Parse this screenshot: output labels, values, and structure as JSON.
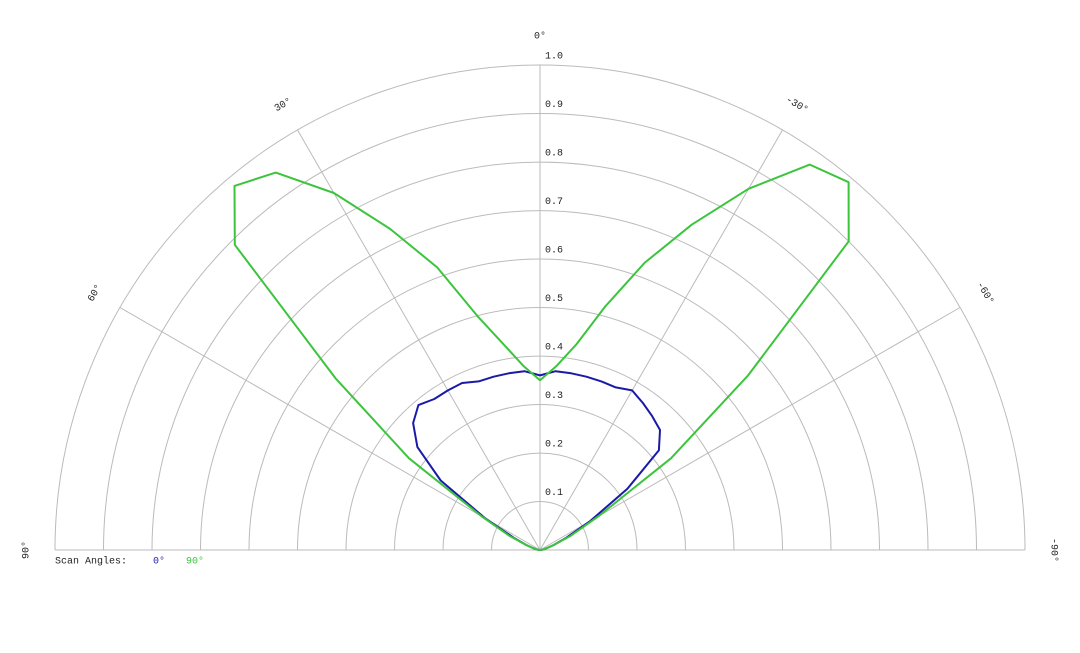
{
  "chart_data": {
    "type": "polar",
    "theta": [
      90,
      85,
      80,
      75,
      70,
      65,
      60,
      55,
      50,
      45,
      40,
      35,
      30,
      25,
      20,
      15,
      10,
      5,
      0,
      -5,
      -10,
      -15,
      -20,
      -25,
      -30,
      -35,
      -40,
      -45,
      -50,
      -55,
      -60,
      -65,
      -70,
      -75,
      -80,
      -85,
      -90
    ],
    "series": [
      {
        "name": "0°",
        "color": "#1a1aa8",
        "values": [
          0,
          0.003,
          0.008,
          0.015,
          0.03,
          0.06,
          0.13,
          0.25,
          0.33,
          0.37,
          0.39,
          0.38,
          0.38,
          0.38,
          0.37,
          0.37,
          0.37,
          0.37,
          0.36,
          0.37,
          0.37,
          0.37,
          0.37,
          0.37,
          0.38,
          0.37,
          0.36,
          0.35,
          0.32,
          0.22,
          0.12,
          0.06,
          0.03,
          0.015,
          0.008,
          0.003,
          0
        ]
      },
      {
        "name": "90°",
        "color": "#3cc43c",
        "values": [
          0,
          0.003,
          0.008,
          0.015,
          0.03,
          0.07,
          0.14,
          0.33,
          0.55,
          0.89,
          0.98,
          0.95,
          0.85,
          0.73,
          0.62,
          0.5,
          0.43,
          0.38,
          0.35,
          0.38,
          0.43,
          0.52,
          0.63,
          0.74,
          0.86,
          0.97,
          0.99,
          0.9,
          0.56,
          0.33,
          0.14,
          0.07,
          0.03,
          0.015,
          0.008,
          0.003,
          0
        ]
      }
    ],
    "rlim": [
      0,
      1
    ],
    "rticks": [
      0.1,
      0.2,
      0.3,
      0.4,
      0.5,
      0.6,
      0.7,
      0.8,
      0.9,
      {
        "value": 1,
        "label": "1.0"
      }
    ],
    "thetaticks": [
      {
        "value": 90,
        "label": "90°"
      },
      {
        "value": 60,
        "label": "60°"
      },
      {
        "value": 30,
        "label": "30°"
      },
      {
        "value": 0,
        "label": "0°"
      },
      {
        "value": -30,
        "label": "-30°"
      },
      {
        "value": -60,
        "label": "-60°"
      },
      {
        "value": -90,
        "label": "-90°"
      }
    ],
    "legend_title": "Scan Angles:"
  }
}
